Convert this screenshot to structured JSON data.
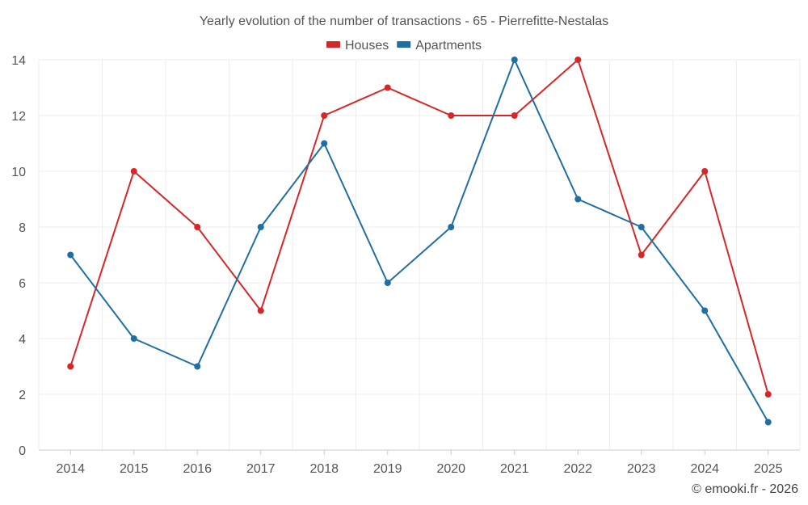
{
  "chart_data": {
    "type": "line",
    "title": "Yearly evolution of the number of transactions - 65 - Pierrefitte-Nestalas",
    "categories": [
      "2014",
      "2015",
      "2016",
      "2017",
      "2018",
      "2019",
      "2020",
      "2021",
      "2022",
      "2023",
      "2024",
      "2025"
    ],
    "series": [
      {
        "name": "Houses",
        "color": "#d62728",
        "values": [
          3,
          10,
          8,
          5,
          12,
          13,
          12,
          12,
          14,
          7,
          10,
          2
        ]
      },
      {
        "name": "Apartments",
        "color": "#1f6fa3",
        "values": [
          7,
          4,
          3,
          8,
          11,
          6,
          8,
          14,
          9,
          8,
          5,
          1
        ]
      }
    ],
    "xlabel": "",
    "ylabel": "",
    "ylim": [
      0,
      14
    ],
    "yticks": [
      0,
      2,
      4,
      6,
      8,
      10,
      12,
      14
    ],
    "grid": true,
    "legend_position": "top-center"
  },
  "credit": "© emooki.fr - 2026"
}
